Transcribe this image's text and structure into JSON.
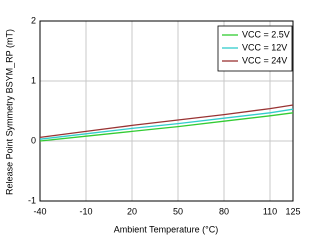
{
  "chart_data": {
    "type": "line",
    "x_label": "Ambient Temperature (°C)",
    "y_label": "Release Point Symmetry BSYM_RP (mT)",
    "x": [
      -40,
      -10,
      20,
      50,
      80,
      110,
      125
    ],
    "series": [
      {
        "name": "VCC = 2.5V",
        "color": "#33cc33",
        "values": [
          0.0,
          0.08,
          0.16,
          0.24,
          0.33,
          0.42,
          0.47
        ]
      },
      {
        "name": "VCC = 12V",
        "color": "#33cccc",
        "values": [
          0.03,
          0.12,
          0.21,
          0.29,
          0.38,
          0.47,
          0.53
        ]
      },
      {
        "name": "VCC = 24V",
        "color": "#993333",
        "values": [
          0.06,
          0.16,
          0.26,
          0.35,
          0.44,
          0.54,
          0.6
        ]
      }
    ],
    "xlim": [
      -40,
      125
    ],
    "xticks": [
      -40,
      -10,
      20,
      50,
      80,
      110,
      125
    ],
    "ylim": [
      -1,
      2
    ],
    "yticks": [
      -1,
      0,
      1,
      2
    ],
    "grid": true,
    "legend": "upper-right"
  }
}
